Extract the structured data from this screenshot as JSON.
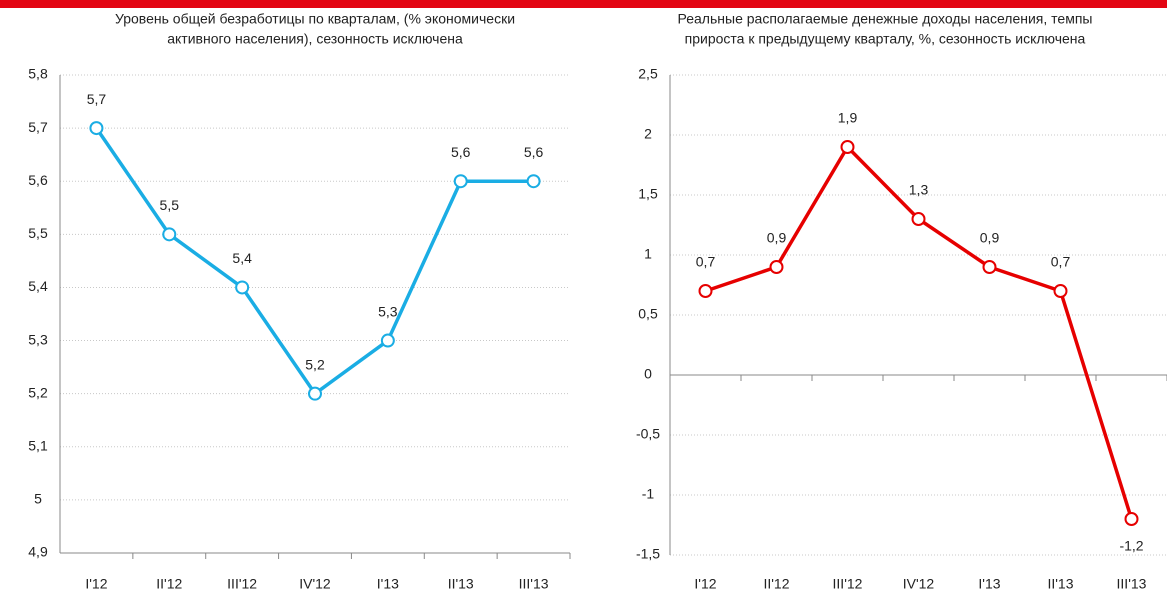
{
  "chart_data": [
    {
      "type": "line",
      "title": [
        "Уровень общей безработицы по кварталам, (% экономически",
        "активного населения), сезонность исключена"
      ],
      "categories": [
        "I'12",
        "II'12",
        "III'12",
        "IV'12",
        "I'13",
        "II'13",
        "III'13"
      ],
      "series": [
        {
          "color": "#1aade4",
          "values": [
            5.7,
            5.5,
            5.4,
            5.2,
            5.3,
            5.6,
            5.6
          ],
          "value_labels": [
            "5,7",
            "5,5",
            "5,4",
            "5,2",
            "5,3",
            "5,6",
            "5,6"
          ]
        }
      ],
      "ylim": [
        4.9,
        5.8
      ],
      "yticks": [
        {
          "value": 4.9,
          "label": "4,9"
        },
        5,
        {
          "value": 5.1,
          "label": "5,1"
        },
        {
          "value": 5.2,
          "label": "5,2"
        },
        {
          "value": 5.3,
          "label": "5,3"
        },
        {
          "value": 5.4,
          "label": "5,4"
        },
        {
          "value": 5.5,
          "label": "5,5"
        },
        {
          "value": 5.6,
          "label": "5,6"
        },
        {
          "value": 5.7,
          "label": "5,7"
        },
        {
          "value": 5.8,
          "label": "5,8"
        }
      ],
      "grid": true
    },
    {
      "type": "line",
      "title": [
        "Реальные располагаемые денежные доходы населения, темпы",
        "прироста к предыдущему кварталу, %, сезонность исключена"
      ],
      "categories": [
        "I'12",
        "II'12",
        "III'12",
        "IV'12",
        "I'13",
        "II'13",
        "III'13"
      ],
      "series": [
        {
          "color": "#e60000",
          "values": [
            0.7,
            0.9,
            1.9,
            1.3,
            0.9,
            0.7,
            -1.2
          ],
          "value_labels": [
            "0,7",
            "0,9",
            "1,9",
            "1,3",
            "0,9",
            "0,7",
            "-1,2"
          ]
        }
      ],
      "ylim": [
        -1.5,
        2.5
      ],
      "yticks": [
        {
          "value": -1.5,
          "label": "-1,5"
        },
        -1,
        {
          "value": -0.5,
          "label": "-0,5"
        },
        0,
        {
          "value": 0.5,
          "label": "0,5"
        },
        1,
        {
          "value": 1.5,
          "label": "1,5"
        },
        2,
        {
          "value": 2.5,
          "label": "2,5"
        }
      ],
      "grid": true
    }
  ]
}
